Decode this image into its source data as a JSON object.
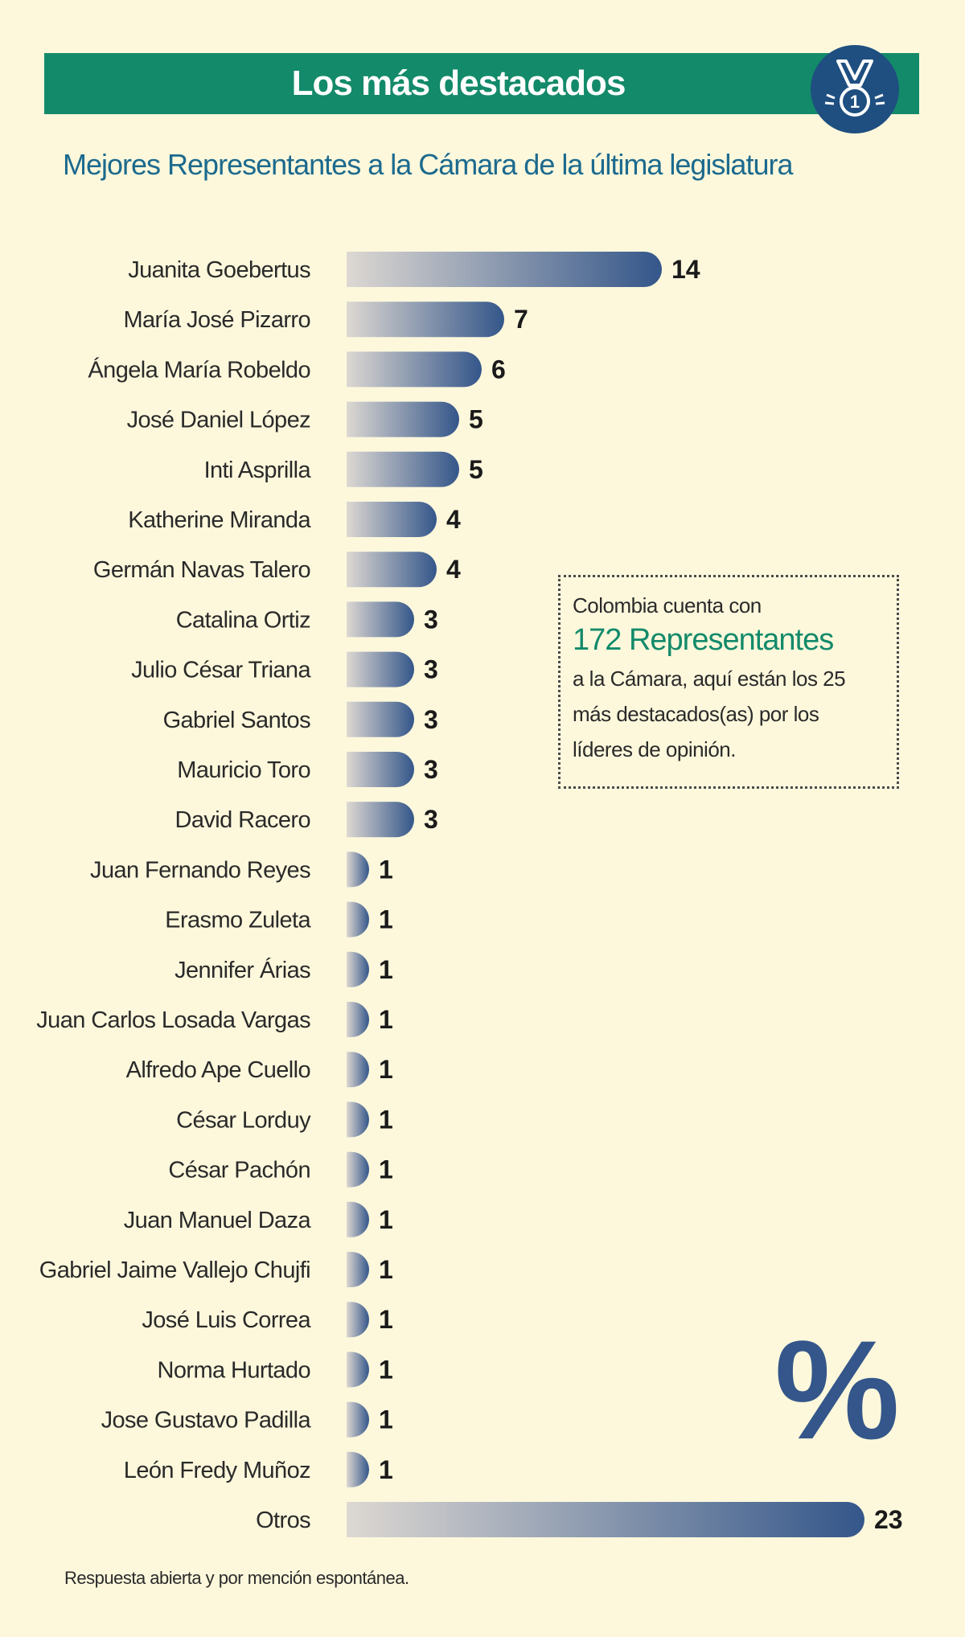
{
  "header": {
    "title": "Los más destacados",
    "icon": "medal-icon",
    "medal_number": "1"
  },
  "subtitle": "Mejores Representantes a la Cámara de la última legislatura",
  "info_box": {
    "line1": "Colombia cuenta con",
    "highlight": "172 Representantes",
    "text": "a la Cámara, aquí están  los 25 más destacados(as) por los líderes de opinión."
  },
  "percent_symbol": "%",
  "footnote": "Respuesta abierta y por mención espontánea.",
  "colors": {
    "background": "#fdf8dc",
    "header": "#138a6a",
    "subtitle": "#1c6a8e",
    "bar_start": "#ddd8d2",
    "bar_end": "#34568a",
    "highlight": "#138a6a"
  },
  "chart_data": {
    "type": "bar",
    "orientation": "horizontal",
    "unit": "%",
    "categories": [
      "Juanita Goebertus",
      "María José Pizarro",
      "Ángela María Robeldo",
      "José Daniel López",
      "Inti Asprilla",
      "Katherine Miranda",
      "Germán Navas Talero",
      "Catalina Ortiz",
      "Julio César Triana",
      "Gabriel Santos",
      "Mauricio Toro",
      "David Racero",
      "Juan Fernando Reyes",
      "Erasmo Zuleta",
      "Jennifer Árias",
      "Juan Carlos Losada Vargas",
      "Alfredo Ape Cuello",
      "César Lorduy",
      "César Pachón",
      "Juan Manuel Daza",
      "Gabriel Jaime Vallejo Chujfi",
      "José Luis Correa",
      "Norma Hurtado",
      "Jose Gustavo Padilla",
      "León Fredy Muñoz",
      "Otros"
    ],
    "values": [
      14,
      7,
      6,
      5,
      5,
      4,
      4,
      3,
      3,
      3,
      3,
      3,
      1,
      1,
      1,
      1,
      1,
      1,
      1,
      1,
      1,
      1,
      1,
      1,
      1,
      23
    ],
    "value_labels": [
      "14",
      "7",
      "6",
      "5",
      "5",
      "4",
      "4",
      "3",
      "3",
      "3",
      "3",
      "3",
      "1",
      "1",
      "1",
      "1",
      "1",
      "1",
      "1",
      "1",
      "1",
      "1",
      "1",
      "1",
      "1",
      "23"
    ],
    "title": "",
    "xlabel": "",
    "ylabel": "",
    "grid": false
  }
}
